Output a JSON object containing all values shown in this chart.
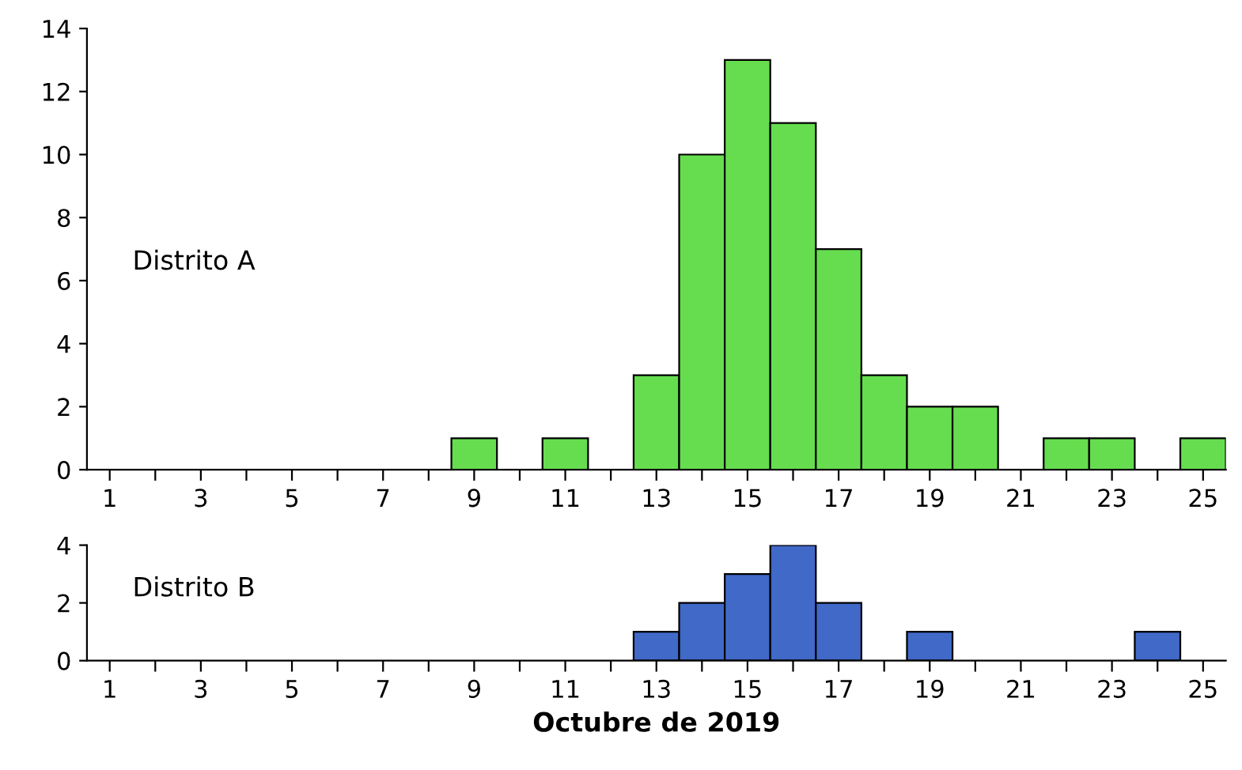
{
  "chart_data": [
    {
      "type": "bar",
      "categories": [
        "1",
        null,
        "3",
        null,
        "5",
        null,
        "7",
        null,
        "9",
        null,
        "11",
        null,
        "13",
        null,
        "15",
        null,
        "17",
        null,
        "19",
        null,
        "21",
        null,
        "23",
        null,
        "25"
      ],
      "series": [
        {
          "color": "#66dd4f",
          "values": [
            0,
            0,
            0,
            0,
            0,
            0,
            0,
            0,
            1,
            0,
            1,
            0,
            3,
            10,
            13,
            11,
            7,
            3,
            2,
            2,
            0,
            1,
            1,
            0,
            1
          ]
        }
      ],
      "ylim": [
        0,
        14
      ],
      "yticks": [
        0,
        2,
        4,
        6,
        8,
        10,
        12,
        14
      ],
      "grid": false,
      "legend": false,
      "annotations": [
        "Distrito A"
      ]
    },
    {
      "type": "bar",
      "categories": [
        "1",
        null,
        "3",
        null,
        "5",
        null,
        "7",
        null,
        "9",
        null,
        "11",
        null,
        "13",
        null,
        "15",
        null,
        "17",
        null,
        "19",
        null,
        "21",
        null,
        "23",
        null,
        "25"
      ],
      "series": [
        {
          "color": "#4169c8",
          "values": [
            0,
            0,
            0,
            0,
            0,
            0,
            0,
            0,
            0,
            0,
            0,
            0,
            1,
            2,
            3,
            4,
            2,
            0,
            1,
            0,
            0,
            0,
            0,
            1,
            0
          ]
        }
      ],
      "ylim": [
        0,
        4
      ],
      "yticks": [
        0,
        2,
        4
      ],
      "grid": false,
      "legend": false,
      "xlabel": "Octubre de 2019",
      "annotations": [
        "Distrito B"
      ]
    }
  ]
}
